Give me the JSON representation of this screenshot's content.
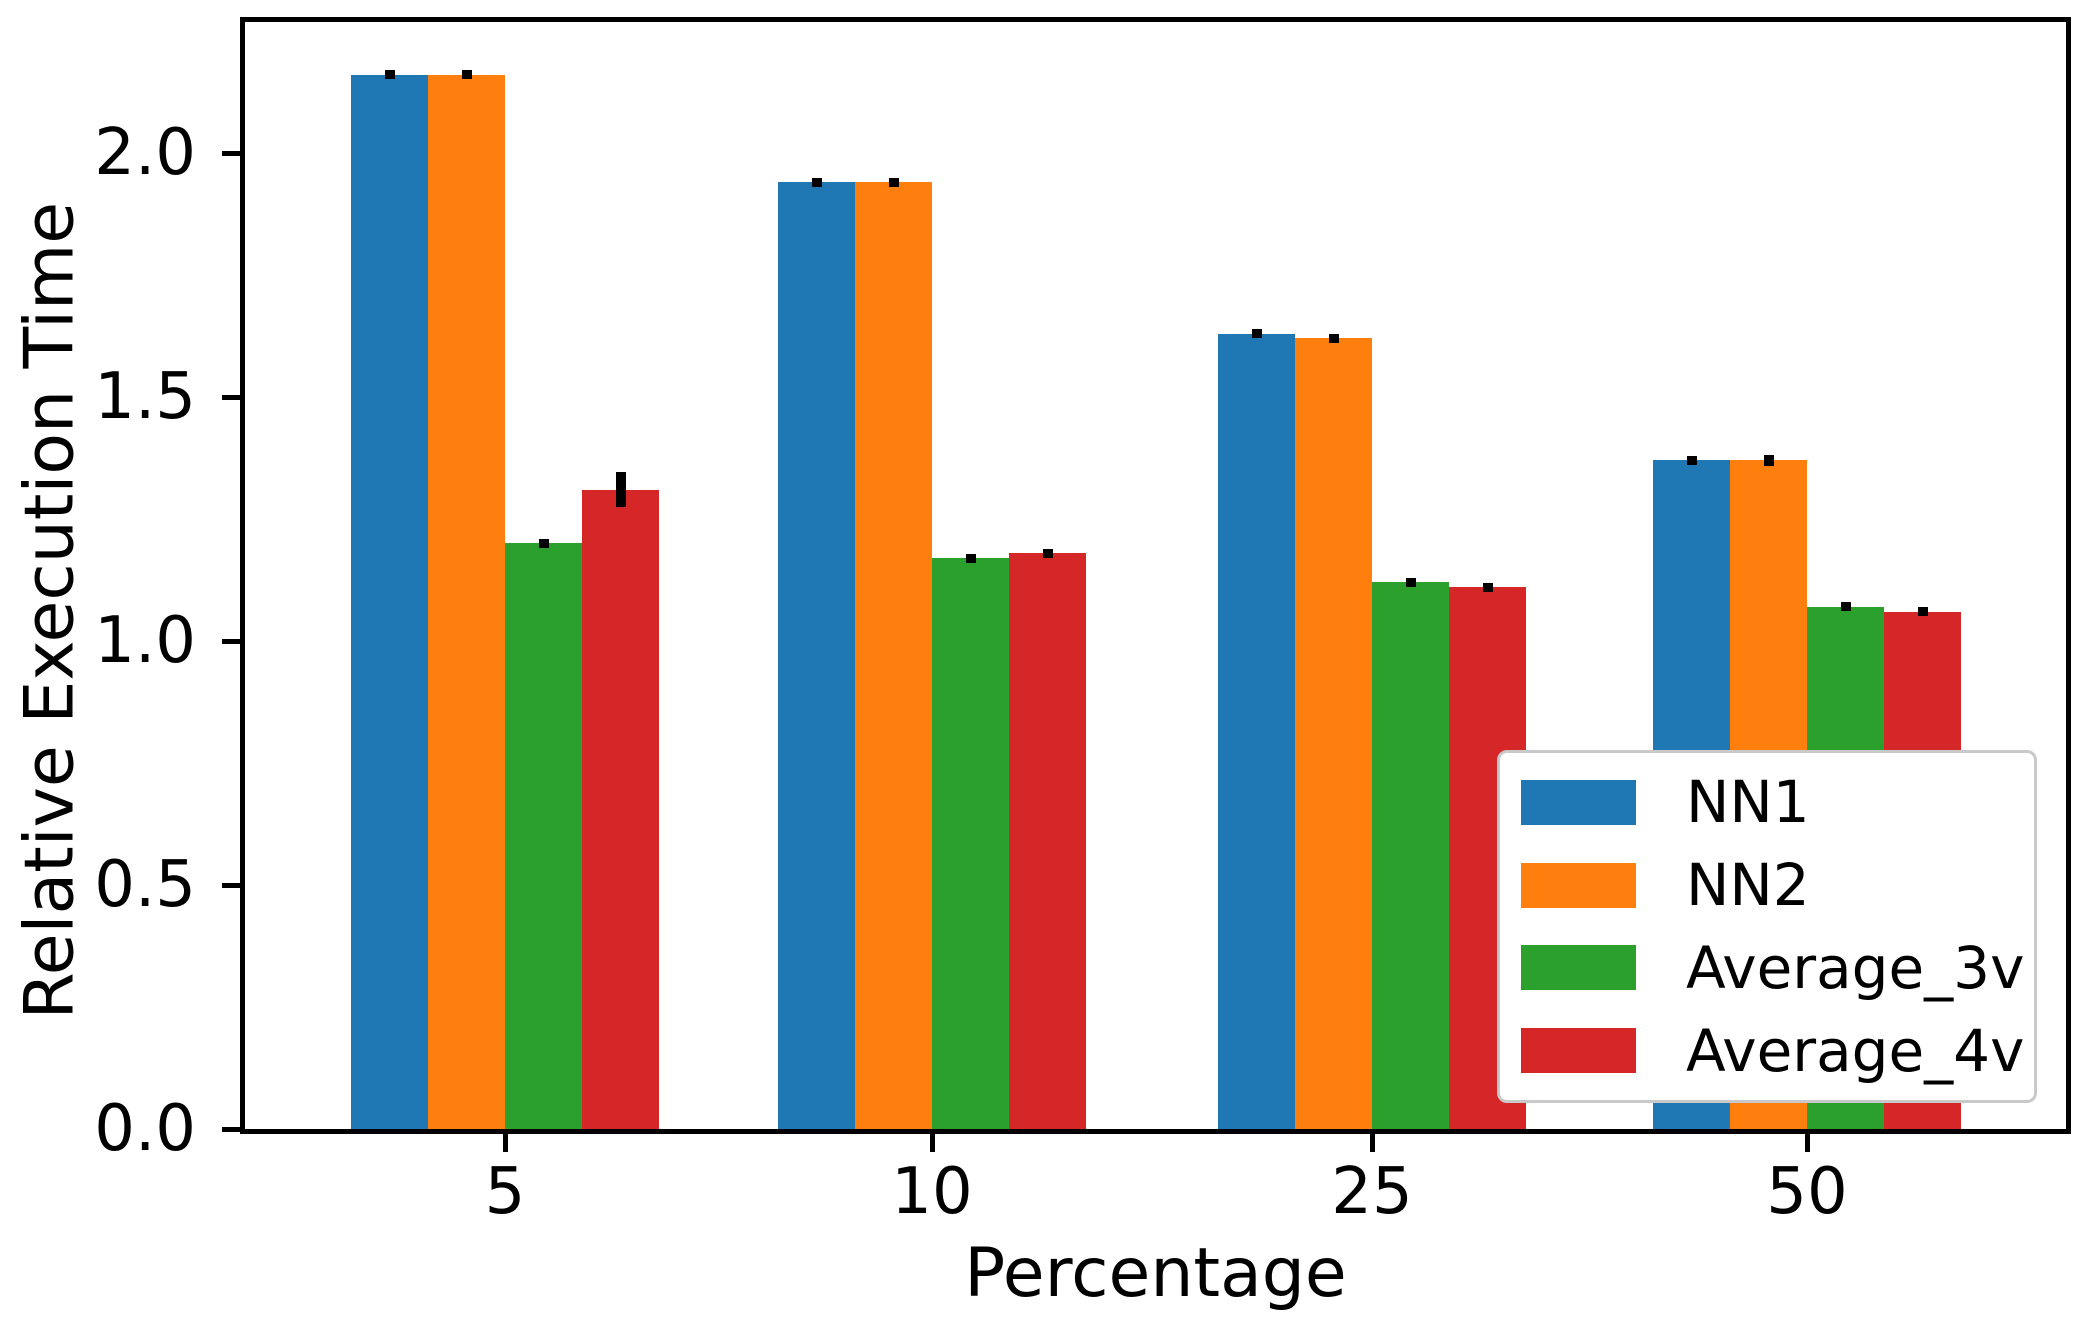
{
  "chart_data": {
    "type": "bar",
    "title": "",
    "xlabel": "Percentage",
    "ylabel": "Relative Execution Time",
    "categories": [
      "5",
      "10",
      "25",
      "50"
    ],
    "series": [
      {
        "name": "NN1",
        "color": "#1f77b4",
        "values": [
          2.16,
          1.94,
          1.63,
          1.37
        ],
        "errors": [
          0.006,
          0.008,
          0.008,
          0.008
        ]
      },
      {
        "name": "NN2",
        "color": "#ff7f0e",
        "values": [
          2.16,
          1.94,
          1.62,
          1.37
        ],
        "errors": [
          0.007,
          0.008,
          0.01,
          0.012
        ]
      },
      {
        "name": "Average_3v",
        "color": "#2ca02c",
        "values": [
          1.2,
          1.17,
          1.12,
          1.07
        ],
        "errors": [
          0.006,
          0.005,
          0.006,
          0.007
        ]
      },
      {
        "name": "Average_4v",
        "color": "#d62728",
        "values": [
          1.31,
          1.18,
          1.11,
          1.06
        ],
        "errors": [
          0.036,
          0.006,
          0.006,
          0.005
        ]
      }
    ],
    "yticks": [
      "0.0",
      "0.5",
      "1.0",
      "1.5",
      "2.0"
    ],
    "ylim": [
      0.0,
      2.28
    ],
    "grid": false,
    "legend_position": "lower right",
    "axis_color": "#000000",
    "legend_border_color": "#c9c9c9",
    "background_color": "#ffffff"
  }
}
